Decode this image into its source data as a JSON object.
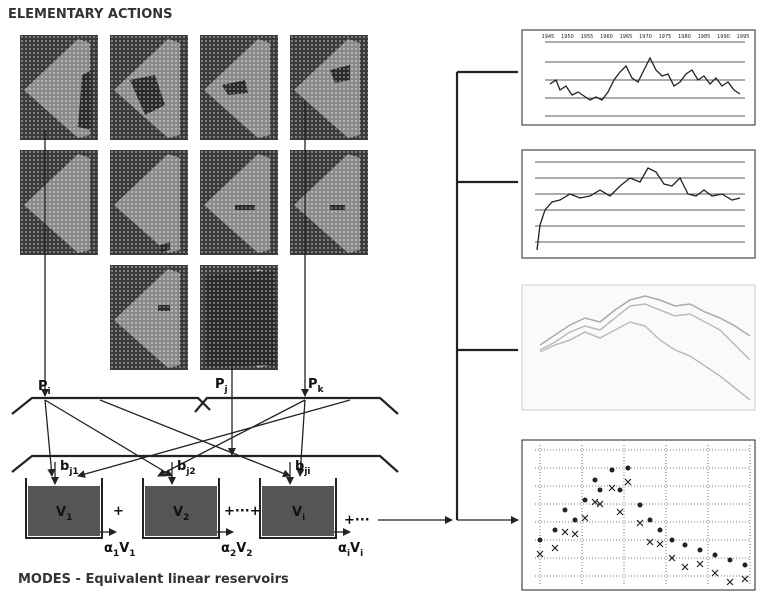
{
  "header": {
    "title": "ELEMENTARY ACTIONS"
  },
  "inputs": [
    {
      "symbol": "P",
      "subscript": "i"
    },
    {
      "symbol": "P",
      "subscript": "j"
    },
    {
      "symbol": "P",
      "subscript": "k"
    }
  ],
  "coefficients": [
    {
      "symbol": "b",
      "subscript": "j1"
    },
    {
      "symbol": "b",
      "subscript": "j2"
    },
    {
      "symbol": "b",
      "subscript": "ji"
    }
  ],
  "reservoirs": [
    {
      "symbol": "V",
      "subscript": "1",
      "output": {
        "coef": "α",
        "coef_sub": "1",
        "var": "V",
        "var_sub": "1"
      }
    },
    {
      "symbol": "V",
      "subscript": "2",
      "output": {
        "coef": "α",
        "coef_sub": "2",
        "var": "V",
        "var_sub": "2"
      }
    },
    {
      "symbol": "V",
      "subscript": "i",
      "output": {
        "coef": "α",
        "coef_sub": "i",
        "var": "V",
        "var_sub": "i"
      }
    }
  ],
  "operators": [
    "+",
    "+···+",
    "+···"
  ],
  "footer": {
    "caption": "MODES - Equivalent linear reservoirs"
  },
  "charts": {
    "top_axis_labels": [
      "1945",
      "1950",
      "1955",
      "1960",
      "1965",
      "1970",
      "1975",
      "1980",
      "1985",
      "1990",
      "1995"
    ]
  }
}
